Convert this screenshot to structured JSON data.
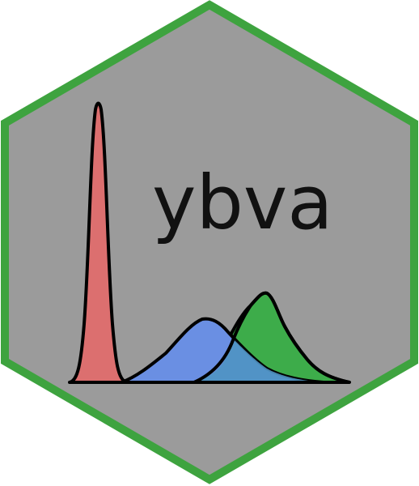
{
  "logo": {
    "wordmark": "ybva",
    "colors": {
      "hex_border": "#3ea33f",
      "hex_fill": "#9b9b9b",
      "outline": "#000000",
      "red_peak": "#dc6f6f",
      "blue_peak": "#6a8fe3",
      "green_peak": "#3dac4a",
      "overlap": "#4f93c2"
    },
    "icons": [
      "hex-badge",
      "density-curves-icon"
    ]
  }
}
